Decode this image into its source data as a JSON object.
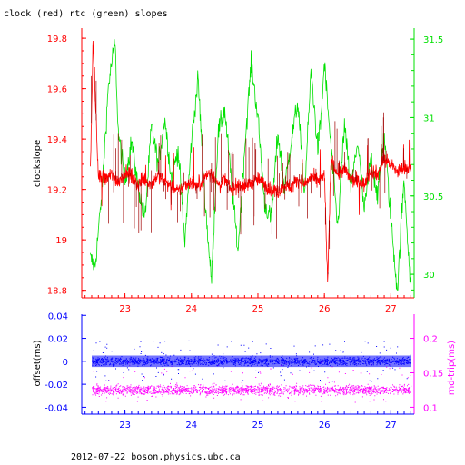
{
  "page": {
    "title": "clock (red) rtc (green) slopes",
    "footer": "2012-07-22  boson.physics.ubc.ca"
  },
  "colors": {
    "red": "#ff0000",
    "dark_red": "#a00000",
    "green": "#00e000",
    "blue": "#0000ff",
    "magenta": "#ff00ff",
    "axis_black": "#000000"
  },
  "chart_data": [
    {
      "type": "line",
      "panel": "top",
      "ylabel": "clockslope",
      "y2label": "",
      "xlim": [
        22.35,
        27.35
      ],
      "ylim": [
        18.77,
        19.84
      ],
      "y2lim": [
        29.85,
        31.57
      ],
      "xticks": [
        "23",
        "24",
        "25",
        "26",
        "27"
      ],
      "yticks": [
        "18.8",
        "19",
        "19.2",
        "19.4",
        "19.6",
        "19.8"
      ],
      "y2ticks": [
        "30",
        "30.5",
        "31",
        "31.5"
      ],
      "series": [
        {
          "axis": "left",
          "color": "#ff0000",
          "x": [
            22.48,
            22.52,
            22.6,
            22.7,
            22.8,
            22.9,
            23.0,
            23.1,
            23.2,
            23.3,
            23.4,
            23.5,
            23.6,
            23.7,
            23.8,
            23.9,
            24.0,
            24.1,
            24.2,
            24.3,
            24.4,
            24.5,
            24.6,
            24.7,
            24.8,
            24.9,
            25.0,
            25.1,
            25.2,
            25.3,
            25.4,
            25.5,
            25.6,
            25.7,
            25.8,
            25.9,
            26.0,
            26.05,
            26.1,
            26.2,
            26.3,
            26.4,
            26.5,
            26.6,
            26.7,
            26.8,
            26.9,
            27.0,
            27.1,
            27.2,
            27.3
          ],
          "y": [
            19.27,
            19.79,
            19.25,
            19.24,
            19.26,
            19.23,
            19.27,
            19.25,
            19.22,
            19.24,
            19.22,
            19.26,
            19.23,
            19.21,
            19.19,
            19.22,
            19.23,
            19.21,
            19.25,
            19.27,
            19.22,
            19.24,
            19.2,
            19.22,
            19.21,
            19.23,
            19.24,
            19.22,
            19.2,
            19.19,
            19.22,
            19.21,
            19.24,
            19.22,
            19.25,
            19.23,
            19.26,
            18.83,
            19.32,
            19.26,
            19.28,
            19.24,
            19.23,
            19.22,
            19.28,
            19.26,
            19.32,
            19.3,
            19.27,
            19.29,
            19.28
          ]
        },
        {
          "axis": "right",
          "color": "#00e000",
          "x": [
            22.48,
            22.55,
            22.65,
            22.75,
            22.85,
            22.9,
            23.0,
            23.1,
            23.2,
            23.3,
            23.4,
            23.5,
            23.6,
            23.7,
            23.8,
            23.9,
            24.0,
            24.1,
            24.2,
            24.3,
            24.4,
            24.5,
            24.6,
            24.7,
            24.8,
            24.9,
            25.0,
            25.1,
            25.2,
            25.3,
            25.4,
            25.5,
            25.6,
            25.7,
            25.8,
            25.9,
            25.95,
            26.0,
            26.1,
            26.2,
            26.3,
            26.4,
            26.5,
            26.6,
            26.7,
            26.8,
            26.9,
            27.0,
            27.1,
            27.15,
            27.2,
            27.3
          ],
          "y": [
            30.1,
            30.05,
            30.5,
            31.2,
            31.48,
            30.9,
            30.6,
            30.85,
            30.55,
            30.35,
            30.95,
            30.7,
            31.0,
            30.6,
            30.8,
            30.2,
            30.85,
            31.25,
            30.5,
            29.95,
            30.9,
            31.05,
            30.6,
            30.15,
            30.8,
            31.35,
            31.0,
            30.45,
            30.35,
            30.9,
            30.55,
            30.85,
            31.1,
            30.5,
            31.3,
            30.8,
            31.0,
            31.35,
            30.8,
            30.3,
            30.95,
            30.55,
            30.85,
            30.4,
            30.75,
            30.5,
            30.9,
            30.35,
            29.88,
            30.3,
            30.6,
            29.9
          ]
        }
      ]
    },
    {
      "type": "scatter",
      "panel": "bottom",
      "ylabel": "offset(ms)",
      "y2label": "rnd-trip(ms)",
      "xlim": [
        22.35,
        27.35
      ],
      "ylim": [
        -0.046,
        0.041
      ],
      "y2lim": [
        0.09,
        0.235
      ],
      "xticks": [
        "23",
        "24",
        "25",
        "26",
        "27"
      ],
      "yticks": [
        "-0.04",
        "-0.02",
        "0",
        "0.02",
        "0.04"
      ],
      "y2ticks": [
        "0.1",
        "0.15",
        "0.2"
      ],
      "series": [
        {
          "axis": "left",
          "color": "#0000ff",
          "x_range": [
            22.5,
            27.3
          ],
          "center": 0.0,
          "spread": 0.006,
          "outlier_spread": 0.018
        },
        {
          "axis": "right",
          "color": "#ff00ff",
          "x_range": [
            22.5,
            27.3
          ],
          "center": 0.125,
          "spread": 0.012,
          "outlier_spread": 0.03
        }
      ]
    }
  ]
}
